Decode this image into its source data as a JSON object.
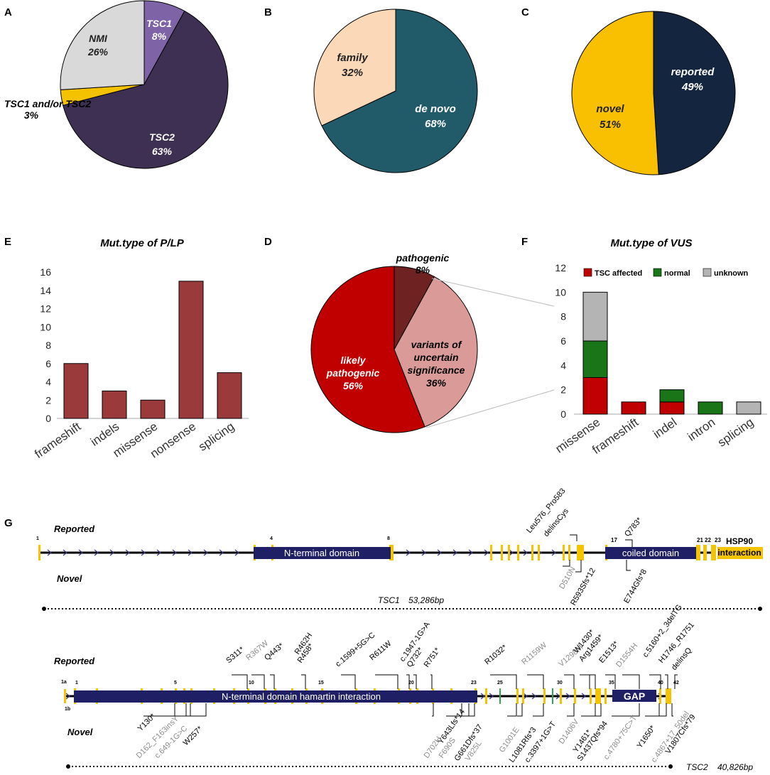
{
  "panel_letters": {
    "a": "A",
    "b": "B",
    "c": "C",
    "d": "D",
    "e": "E",
    "f": "F",
    "g": "G"
  },
  "colors": {
    "tsc1": "#7e64a6",
    "tsc2": "#3d3052",
    "either": "#f5c200",
    "nmi": "#d9d9d9",
    "denovo": "#215a68",
    "family": "#fbd8b8",
    "reported": "#14263f",
    "novel": "#f8c000",
    "pathogenic": "#6e2222",
    "likely": "#c00000",
    "vus": "#da9a98",
    "bar": "#9a3a3a",
    "affected": "#c00000",
    "normal": "#1a7518",
    "unknown": "#b4b4b4",
    "domain": "#1f1f66",
    "exon": "#f5c400",
    "green_exon": "#2ea44f",
    "grey_label": "#8c8c8c"
  },
  "chart_data": [
    {
      "type": "pie",
      "id": "A",
      "slices": [
        {
          "label": "TSC1",
          "value": 8,
          "text": "8%"
        },
        {
          "label": "TSC2",
          "value": 63,
          "text": "63%"
        },
        {
          "label": "TSC1 and/or TSC2",
          "value": 3,
          "text": "3%"
        },
        {
          "label": "NMI",
          "value": 26,
          "text": "26%"
        }
      ]
    },
    {
      "type": "pie",
      "id": "B",
      "slices": [
        {
          "label": "de novo",
          "value": 68,
          "text": "68%"
        },
        {
          "label": "family",
          "value": 32,
          "text": "32%"
        }
      ]
    },
    {
      "type": "pie",
      "id": "C",
      "slices": [
        {
          "label": "reported",
          "value": 49,
          "text": "49%"
        },
        {
          "label": "novel",
          "value": 51,
          "text": "51%"
        }
      ]
    },
    {
      "type": "pie",
      "id": "D",
      "slices": [
        {
          "label": "pathogenic",
          "value": 8,
          "text": "8%"
        },
        {
          "label": "variants of uncertain significance",
          "value": 36,
          "text": "36%"
        },
        {
          "label": "likely pathogenic",
          "value": 56,
          "text": "56%"
        }
      ]
    },
    {
      "type": "bar",
      "id": "E",
      "title": "Mut.type of P/LP",
      "categories": [
        "frameshift",
        "indels",
        "missense",
        "nonsense",
        "splicing"
      ],
      "values": [
        6,
        3,
        2,
        15,
        5
      ],
      "ylim": [
        0,
        16
      ],
      "yticks": [
        0,
        2,
        4,
        6,
        8,
        10,
        12,
        14,
        16
      ]
    },
    {
      "type": "bar",
      "id": "F",
      "title": "Mut.type of VUS",
      "stacked": true,
      "categories": [
        "missense",
        "frameshift",
        "indel",
        "intron",
        "splicing"
      ],
      "series": [
        {
          "name": "TSC affected",
          "values": [
            3,
            1,
            1,
            0,
            0
          ]
        },
        {
          "name": "normal",
          "values": [
            3,
            0,
            1,
            1,
            0
          ]
        },
        {
          "name": "unknown",
          "values": [
            4,
            0,
            0,
            0,
            1
          ]
        }
      ],
      "ylim": [
        0,
        12
      ],
      "yticks": [
        0,
        2,
        4,
        6,
        8,
        10,
        12
      ]
    }
  ],
  "tsc1": {
    "reported": "Reported",
    "novel": "Novel",
    "domains": [
      "N-terminal domain",
      "coiled domain"
    ],
    "hsp90_a": "HSP90",
    "hsp90_b": "interaction",
    "exon_nums": [
      "1",
      "4",
      "8",
      "17",
      "21",
      "22",
      "23"
    ],
    "length_name": "TSC1",
    "length_bp": "53,286bp",
    "reported_variants": [
      "Leu576_Pro583",
      "delinsCys",
      "Q783*"
    ],
    "novel_variants": [
      "D510N",
      "R593Sfs*12",
      "E744Gfs*8"
    ]
  },
  "tsc2": {
    "reported": "Reported",
    "novel": "Novel",
    "domains": [
      "N-terminal domain hamartin interaction",
      "GAP"
    ],
    "exon_nums": [
      "1a",
      "1b",
      "1",
      "5",
      "10",
      "15",
      "20",
      "23",
      "25",
      "30",
      "35",
      "40",
      "42"
    ],
    "length_name": "TSC2",
    "length_bp": "40,826bp",
    "reported_variants": [
      "S311*",
      "R367W",
      "Q443*",
      "R462H",
      "R458*",
      "c.1599+5G>C",
      "R611W",
      "c.1947-1G>A",
      "Q732*",
      "R751*",
      "R1032*",
      "R1159W",
      "V1298M",
      "W1430*",
      "Arg1459*",
      "E1513*",
      "D1554H",
      "c.5160+2_3delTG",
      "H1746_R1751",
      "delinsQ"
    ],
    "novel_variants": [
      "Y130*",
      "D162_F163insY",
      "c.649-1G>C",
      "W257*",
      "Y643Lfs*14",
      "F690S",
      "G661Dfs*37",
      "D702H",
      "V825L",
      "G1001E",
      "L1081Rfs*3",
      "c.3397+1G>T",
      "D1406V",
      "Y1461*",
      "S1437Qfs*94",
      "c.4780+75C>T",
      "Y1650*",
      "c.4867+17_50del",
      "V1807Cfs*79"
    ]
  }
}
